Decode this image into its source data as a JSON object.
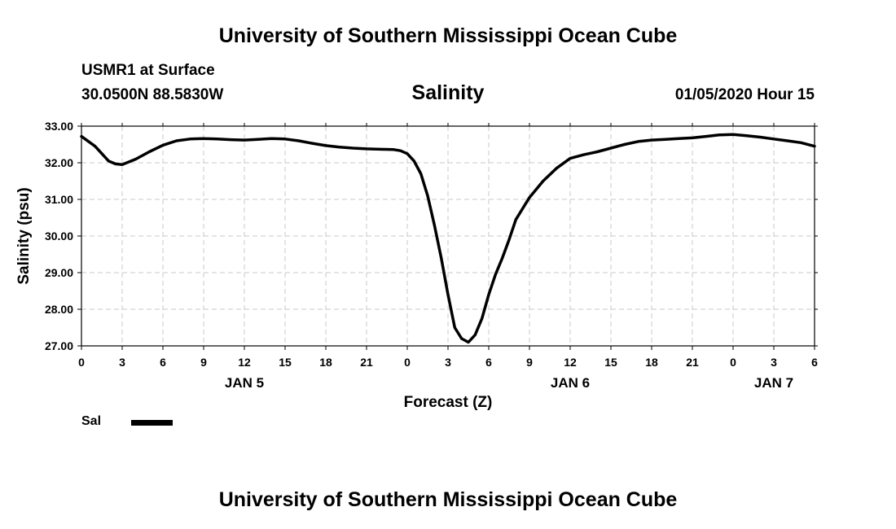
{
  "header": {
    "title": "University of Southern Mississippi Ocean Cube",
    "station": "USMR1 at Surface",
    "coordinates": "30.0500N 88.5830W",
    "datetime": "01/05/2020 Hour 15"
  },
  "footer": {
    "title": "University of Southern Mississippi Ocean Cube"
  },
  "legend": {
    "label": "Sal"
  },
  "colors": {
    "line": "#000000",
    "grid": "#c8c8c8",
    "axis": "#000000"
  },
  "chart_data": {
    "type": "line",
    "title": "Salinity",
    "xlabel": "Forecast (Z)",
    "ylabel": "Salinity (psu)",
    "ylim": [
      27.0,
      33.0
    ],
    "xlim": [
      0,
      54
    ],
    "yticks": [
      "27.00",
      "28.00",
      "29.00",
      "30.00",
      "31.00",
      "32.00",
      "33.00"
    ],
    "xticks": [
      "0",
      "3",
      "6",
      "9",
      "12",
      "15",
      "18",
      "21",
      "0",
      "3",
      "6",
      "9",
      "12",
      "15",
      "18",
      "21",
      "0",
      "3",
      "6"
    ],
    "xtick_step_hours": 3,
    "day_labels": [
      {
        "text": "JAN 5",
        "hour": 12
      },
      {
        "text": "JAN 6",
        "hour": 36
      },
      {
        "text": "JAN 7",
        "hour": 51
      }
    ],
    "grid": true,
    "series": [
      {
        "name": "Sal",
        "x": [
          0,
          1,
          2,
          2.5,
          3,
          4,
          5,
          6,
          7,
          8,
          9,
          10,
          11,
          12,
          13,
          14,
          15,
          16,
          17,
          18,
          19,
          20,
          21,
          22,
          23,
          23.5,
          24,
          24.5,
          25,
          25.5,
          26,
          26.5,
          27,
          27.5,
          28,
          28.5,
          29,
          29.5,
          30,
          30.5,
          31,
          31.5,
          32,
          33,
          34,
          35,
          36,
          37,
          37.5,
          38,
          39,
          40,
          41,
          42,
          43,
          44,
          45,
          46,
          47,
          48,
          49,
          50,
          51,
          52,
          53,
          54
        ],
        "values": [
          32.72,
          32.45,
          32.05,
          31.97,
          31.95,
          32.1,
          32.3,
          32.48,
          32.6,
          32.65,
          32.66,
          32.65,
          32.63,
          32.62,
          32.64,
          32.66,
          32.65,
          32.6,
          32.53,
          32.47,
          32.43,
          32.4,
          32.38,
          32.37,
          32.36,
          32.33,
          32.25,
          32.05,
          31.7,
          31.1,
          30.3,
          29.4,
          28.4,
          27.5,
          27.2,
          27.1,
          27.3,
          27.75,
          28.4,
          28.95,
          29.4,
          29.9,
          30.45,
          31.05,
          31.5,
          31.85,
          32.12,
          32.22,
          32.26,
          32.3,
          32.4,
          32.5,
          32.58,
          32.62,
          32.64,
          32.66,
          32.68,
          32.72,
          32.76,
          32.77,
          32.74,
          32.7,
          32.65,
          32.6,
          32.55,
          32.45
        ]
      }
    ]
  }
}
